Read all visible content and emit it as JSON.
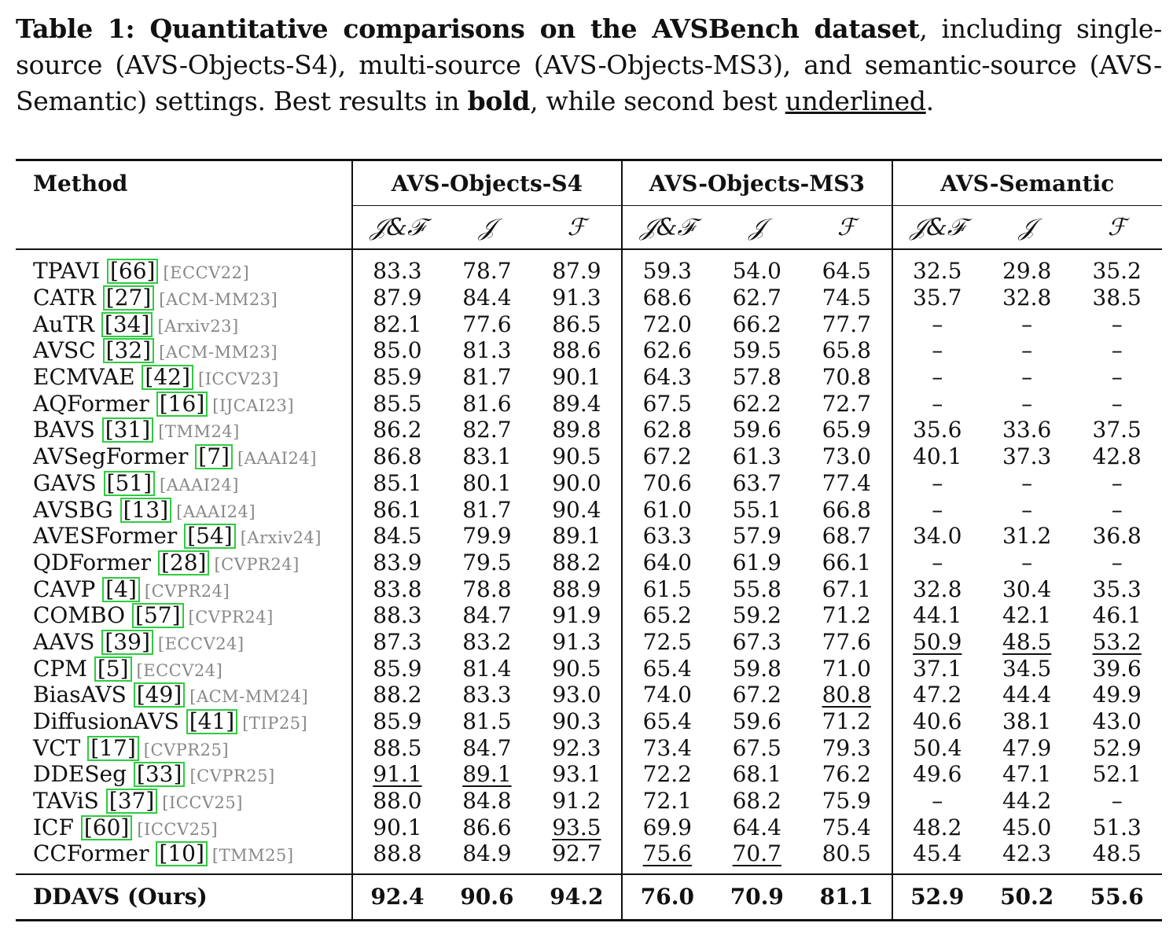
{
  "caption": {
    "bold_part": "Table 1: Quantitative comparisons on the AVSBench dataset",
    "text_part1": ", including single-source (AVS-Objects-S4), multi-source (AVS-Objects-MS3), and semantic-source (AVS-Semantic) settings. Best results in ",
    "bold_word": "bold",
    "text_part2": ", while second best ",
    "underline_word": "underlined",
    "text_part3": "."
  },
  "table": {
    "method_header": "Method",
    "groups": [
      "AVS-Objects-S4",
      "AVS-Objects-MS3",
      "AVS-Semantic"
    ],
    "metrics": [
      "𝒥&ℱ",
      "𝒥",
      "ℱ",
      "𝒥&ℱ",
      "𝒥",
      "ℱ",
      "𝒥&ℱ",
      "𝒥",
      "ℱ"
    ],
    "rows": [
      {
        "name": "TPAVI",
        "ref": "66",
        "venue": "[ECCV22]",
        "values": [
          "83.3",
          "78.7",
          "87.9",
          "59.3",
          "54.0",
          "64.5",
          "32.5",
          "29.8",
          "35.2"
        ]
      },
      {
        "name": "CATR",
        "ref": "27",
        "venue": "[ACM-MM23]",
        "values": [
          "87.9",
          "84.4",
          "91.3",
          "68.6",
          "62.7",
          "74.5",
          "35.7",
          "32.8",
          "38.5"
        ]
      },
      {
        "name": "AuTR",
        "ref": "34",
        "venue": "[Arxiv23]",
        "values": [
          "82.1",
          "77.6",
          "86.5",
          "72.0",
          "66.2",
          "77.7",
          "–",
          "–",
          "–"
        ]
      },
      {
        "name": "AVSC",
        "ref": "32",
        "venue": "[ACM-MM23]",
        "values": [
          "85.0",
          "81.3",
          "88.6",
          "62.6",
          "59.5",
          "65.8",
          "–",
          "–",
          "–"
        ]
      },
      {
        "name": "ECMVAE",
        "ref": "42",
        "venue": "[ICCV23]",
        "values": [
          "85.9",
          "81.7",
          "90.1",
          "64.3",
          "57.8",
          "70.8",
          "–",
          "–",
          "–"
        ]
      },
      {
        "name": "AQFormer",
        "ref": "16",
        "venue": "[IJCAI23]",
        "values": [
          "85.5",
          "81.6",
          "89.4",
          "67.5",
          "62.2",
          "72.7",
          "–",
          "–",
          "–"
        ]
      },
      {
        "name": "BAVS",
        "ref": "31",
        "venue": "[TMM24]",
        "values": [
          "86.2",
          "82.7",
          "89.8",
          "62.8",
          "59.6",
          "65.9",
          "35.6",
          "33.6",
          "37.5"
        ]
      },
      {
        "name": "AVSegFormer",
        "ref": "7",
        "venue": "[AAAI24]",
        "values": [
          "86.8",
          "83.1",
          "90.5",
          "67.2",
          "61.3",
          "73.0",
          "40.1",
          "37.3",
          "42.8"
        ]
      },
      {
        "name": "GAVS",
        "ref": "51",
        "venue": "[AAAI24]",
        "values": [
          "85.1",
          "80.1",
          "90.0",
          "70.6",
          "63.7",
          "77.4",
          "–",
          "–",
          "–"
        ]
      },
      {
        "name": "AVSBG",
        "ref": "13",
        "venue": "[AAAI24]",
        "values": [
          "86.1",
          "81.7",
          "90.4",
          "61.0",
          "55.1",
          "66.8",
          "–",
          "–",
          "–"
        ]
      },
      {
        "name": "AVESFormer",
        "ref": "54",
        "venue": "[Arxiv24]",
        "values": [
          "84.5",
          "79.9",
          "89.1",
          "63.3",
          "57.9",
          "68.7",
          "34.0",
          "31.2",
          "36.8"
        ]
      },
      {
        "name": "QDFormer",
        "ref": "28",
        "venue": "[CVPR24]",
        "values": [
          "83.9",
          "79.5",
          "88.2",
          "64.0",
          "61.9",
          "66.1",
          "–",
          "–",
          "–"
        ]
      },
      {
        "name": "CAVP",
        "ref": "4",
        "venue": "[CVPR24]",
        "values": [
          "83.8",
          "78.8",
          "88.9",
          "61.5",
          "55.8",
          "67.1",
          "32.8",
          "30.4",
          "35.3"
        ]
      },
      {
        "name": "COMBO",
        "ref": "57",
        "venue": "[CVPR24]",
        "values": [
          "88.3",
          "84.7",
          "91.9",
          "65.2",
          "59.2",
          "71.2",
          "44.1",
          "42.1",
          "46.1"
        ]
      },
      {
        "name": "AAVS",
        "ref": "39",
        "venue": "[ECCV24]",
        "values": [
          "87.3",
          "83.2",
          "91.3",
          "72.5",
          "67.3",
          "77.6",
          "50.9",
          "48.5",
          "53.2"
        ],
        "underline": [
          6,
          7,
          8
        ]
      },
      {
        "name": "CPM",
        "ref": "5",
        "venue": "[ECCV24]",
        "values": [
          "85.9",
          "81.4",
          "90.5",
          "65.4",
          "59.8",
          "71.0",
          "37.1",
          "34.5",
          "39.6"
        ]
      },
      {
        "name": "BiasAVS",
        "ref": "49",
        "venue": "[ACM-MM24]",
        "values": [
          "88.2",
          "83.3",
          "93.0",
          "74.0",
          "67.2",
          "80.8",
          "47.2",
          "44.4",
          "49.9"
        ],
        "underline": [
          5
        ]
      },
      {
        "name": "DiffusionAVS",
        "ref": "41",
        "venue": "[TIP25]",
        "values": [
          "85.9",
          "81.5",
          "90.3",
          "65.4",
          "59.6",
          "71.2",
          "40.6",
          "38.1",
          "43.0"
        ]
      },
      {
        "name": "VCT",
        "ref": "17",
        "venue": "[CVPR25]",
        "values": [
          "88.5",
          "84.7",
          "92.3",
          "73.4",
          "67.5",
          "79.3",
          "50.4",
          "47.9",
          "52.9"
        ]
      },
      {
        "name": "DDESeg",
        "ref": "33",
        "venue": "[CVPR25]",
        "values": [
          "91.1",
          "89.1",
          "93.1",
          "72.2",
          "68.1",
          "76.2",
          "49.6",
          "47.1",
          "52.1"
        ],
        "underline": [
          0,
          1
        ]
      },
      {
        "name": "TAViS",
        "ref": "37",
        "venue": "[ICCV25]",
        "values": [
          "88.0",
          "84.8",
          "91.2",
          "72.1",
          "68.2",
          "75.9",
          "–",
          "44.2",
          "–"
        ]
      },
      {
        "name": "ICF",
        "ref": "60",
        "venue": "[ICCV25]",
        "values": [
          "90.1",
          "86.6",
          "93.5",
          "69.9",
          "64.4",
          "75.4",
          "48.2",
          "45.0",
          "51.3"
        ],
        "underline": [
          2
        ]
      },
      {
        "name": "CCFormer",
        "ref": "10",
        "venue": "[TMM25]",
        "values": [
          "88.8",
          "84.9",
          "92.7",
          "75.6",
          "70.7",
          "80.5",
          "45.4",
          "42.3",
          "48.5"
        ],
        "underline": [
          3,
          4
        ]
      }
    ],
    "ours": {
      "name": "DDAVS (Ours)",
      "values": [
        "92.4",
        "90.6",
        "94.2",
        "76.0",
        "70.9",
        "81.1",
        "52.9",
        "50.2",
        "55.6"
      ]
    }
  }
}
